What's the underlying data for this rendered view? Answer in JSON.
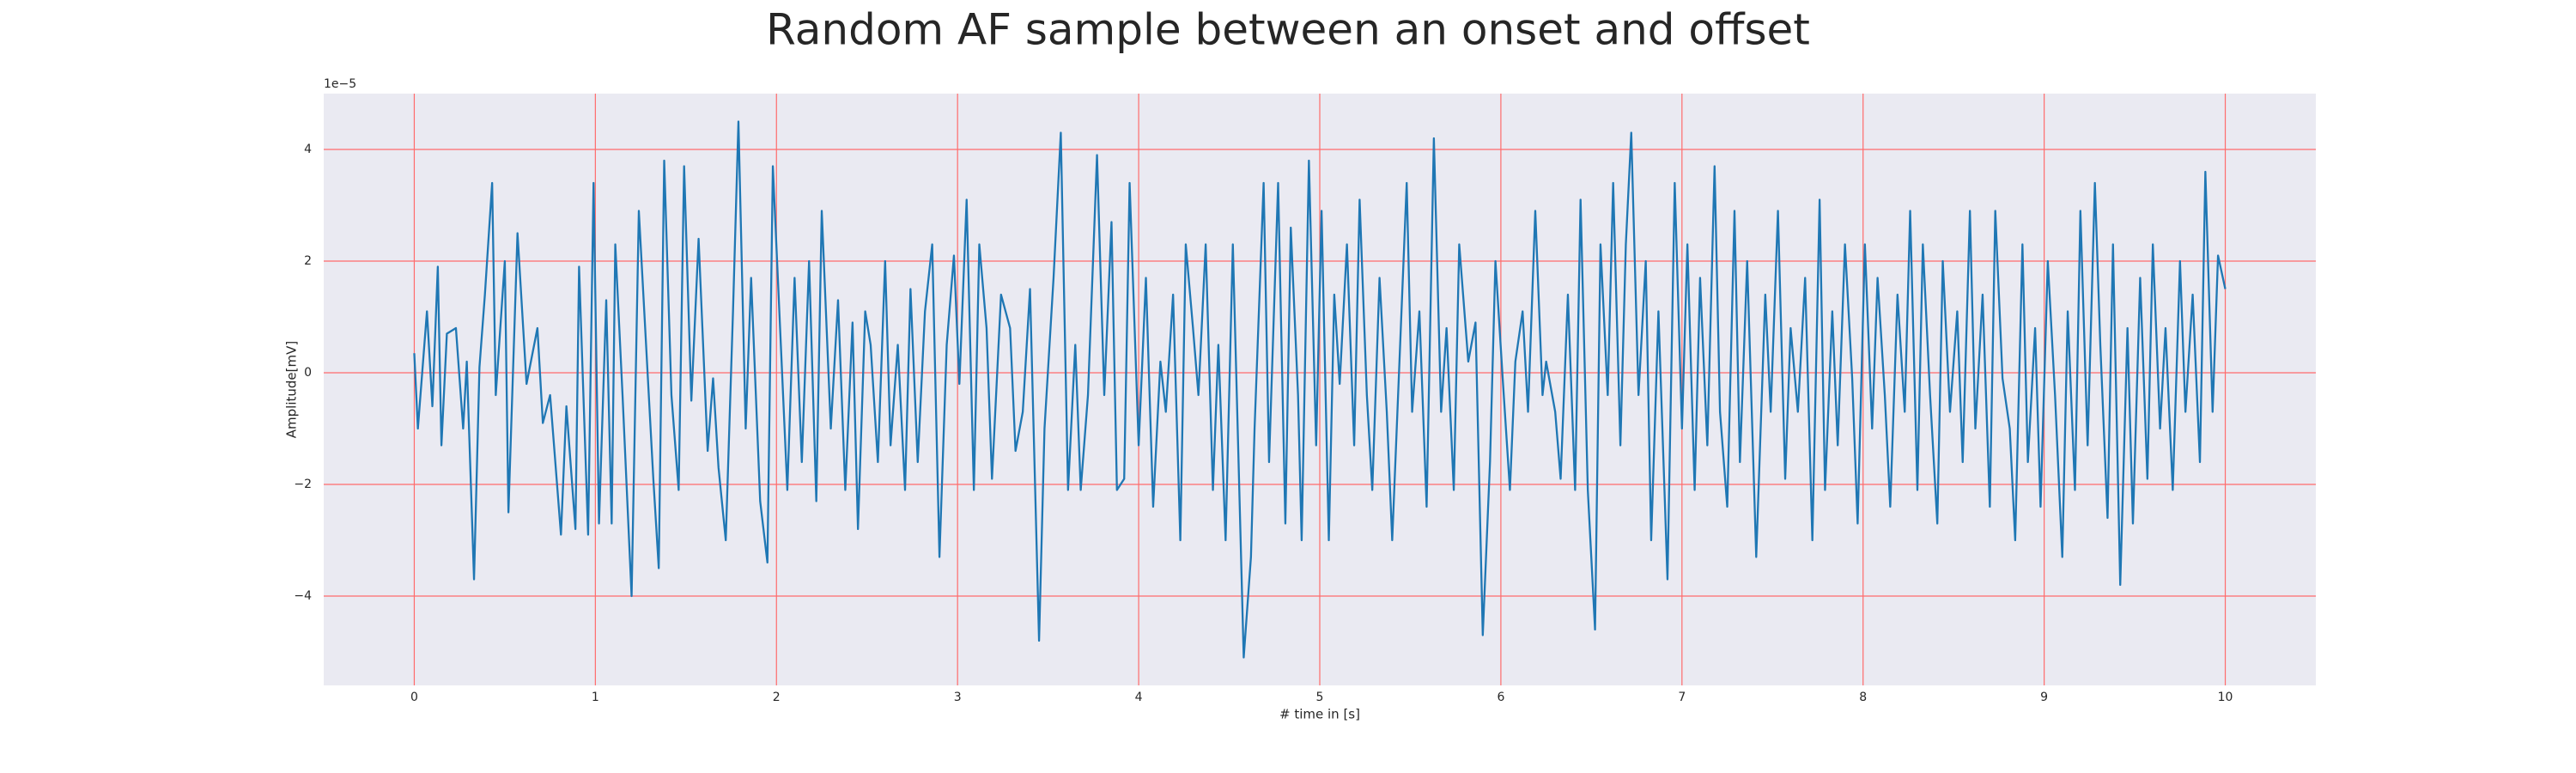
{
  "chart_data": {
    "type": "line",
    "title": "Random AF sample between an onset and offset",
    "xlabel": "# time in [s]",
    "ylabel": "Amplitude[mV]",
    "y_offset_label": "1e−5",
    "background": "#eaeaf2",
    "grid": true,
    "grid_color": "#ff6b6b",
    "xlim": [
      -0.5,
      10.5
    ],
    "ylim": [
      -5.6,
      5.0
    ],
    "xticks": [
      0,
      1,
      2,
      3,
      4,
      5,
      6,
      7,
      8,
      9,
      10
    ],
    "yticks": [
      {
        "value": -4,
        "label": "−4"
      },
      {
        "value": -2,
        "label": "−2"
      },
      0,
      2,
      4
    ],
    "x": [
      0,
      0.02,
      0.07,
      0.1,
      0.13,
      0.15,
      0.18,
      0.23,
      0.27,
      0.29,
      0.33,
      0.36,
      0.39,
      0.43,
      0.45,
      0.5,
      0.52,
      0.57,
      0.62,
      0.68,
      0.71,
      0.75,
      0.81,
      0.84,
      0.89,
      0.91,
      0.96,
      0.99,
      1.02,
      1.06,
      1.09,
      1.11,
      1.15,
      1.2,
      1.24,
      1.28,
      1.32,
      1.35,
      1.38,
      1.42,
      1.46,
      1.49,
      1.53,
      1.57,
      1.62,
      1.65,
      1.68,
      1.72,
      1.76,
      1.79,
      1.83,
      1.86,
      1.91,
      1.95,
      1.98,
      2.02,
      2.06,
      2.1,
      2.14,
      2.18,
      2.22,
      2.25,
      2.3,
      2.34,
      2.38,
      2.42,
      2.45,
      2.49,
      2.52,
      2.56,
      2.6,
      2.63,
      2.67,
      2.71,
      2.74,
      2.78,
      2.82,
      2.86,
      2.9,
      2.94,
      2.98,
      3.01,
      3.05,
      3.09,
      3.12,
      3.16,
      3.19,
      3.24,
      3.29,
      3.32,
      3.36,
      3.4,
      3.45,
      3.48,
      3.53,
      3.57,
      3.61,
      3.65,
      3.68,
      3.72,
      3.77,
      3.81,
      3.85,
      3.88,
      3.92,
      3.95,
      4.0,
      4.04,
      4.08,
      4.12,
      4.15,
      4.19,
      4.23,
      4.26,
      4.3,
      4.33,
      4.37,
      4.41,
      4.44,
      4.48,
      4.52,
      4.58,
      4.62,
      4.64,
      4.69,
      4.72,
      4.77,
      4.81,
      4.84,
      4.88,
      4.9,
      4.94,
      4.98,
      5.01,
      5.05,
      5.08,
      5.11,
      5.15,
      5.19,
      5.22,
      5.26,
      5.29,
      5.33,
      5.37,
      5.4,
      5.44,
      5.48,
      5.51,
      5.55,
      5.59,
      5.63,
      5.67,
      5.7,
      5.74,
      5.77,
      5.82,
      5.86,
      5.9,
      5.94,
      5.97,
      6.01,
      6.05,
      6.08,
      6.12,
      6.15,
      6.19,
      6.23,
      6.25,
      6.3,
      6.33,
      6.37,
      6.41,
      6.44,
      6.48,
      6.52,
      6.55,
      6.59,
      6.62,
      6.66,
      6.69,
      6.72,
      6.76,
      6.8,
      6.83,
      6.87,
      6.92,
      6.96,
      7.0,
      7.03,
      7.07,
      7.1,
      7.14,
      7.18,
      7.21,
      7.25,
      7.29,
      7.32,
      7.36,
      7.41,
      7.46,
      7.49,
      7.53,
      7.57,
      7.6,
      7.64,
      7.68,
      7.72,
      7.76,
      7.79,
      7.83,
      7.86,
      7.9,
      7.94,
      7.97,
      8.01,
      8.05,
      8.08,
      8.12,
      8.15,
      8.19,
      8.23,
      8.26,
      8.3,
      8.33,
      8.37,
      8.41,
      8.44,
      8.48,
      8.52,
      8.55,
      8.59,
      8.62,
      8.66,
      8.7,
      8.73,
      8.77,
      8.81,
      8.84,
      8.88,
      8.91,
      8.95,
      8.98,
      9.02,
      9.06,
      9.1,
      9.13,
      9.17,
      9.2,
      9.24,
      9.28,
      9.31,
      9.35,
      9.38,
      9.42,
      9.46,
      9.49,
      9.53,
      9.57,
      9.6,
      9.64,
      9.67,
      9.71,
      9.75,
      9.78,
      9.82,
      9.86,
      9.89,
      9.93,
      9.96,
      10.0
    ],
    "series": [
      {
        "color": "#1f77b4",
        "values": [
          0.35,
          -1.0,
          1.1,
          -0.6,
          1.9,
          -1.3,
          0.7,
          0.8,
          -1.0,
          0.2,
          -3.7,
          0.1,
          1.4,
          3.4,
          -0.4,
          2.0,
          -2.5,
          2.5,
          -0.2,
          0.8,
          -0.9,
          -0.4,
          -2.9,
          -0.6,
          -2.8,
          1.9,
          -2.9,
          3.4,
          -2.7,
          1.3,
          -2.7,
          2.3,
          -0.4,
          -4.0,
          2.9,
          0.5,
          -1.9,
          -3.5,
          3.8,
          -0.4,
          -2.1,
          3.7,
          -0.5,
          2.4,
          -1.4,
          -0.1,
          -1.7,
          -3.0,
          1.1,
          4.5,
          -1.0,
          1.7,
          -2.3,
          -3.4,
          3.7,
          0.8,
          -2.1,
          1.7,
          -1.6,
          2.0,
          -2.3,
          2.9,
          -1.0,
          1.3,
          -2.1,
          0.9,
          -2.8,
          1.1,
          0.5,
          -1.6,
          2.0,
          -1.3,
          0.5,
          -2.1,
          1.5,
          -1.6,
          1.1,
          2.3,
          -3.3,
          0.5,
          2.1,
          -0.2,
          3.1,
          -2.1,
          2.3,
          0.8,
          -1.9,
          1.4,
          0.8,
          -1.4,
          -0.7,
          1.5,
          -4.8,
          -1.0,
          1.7,
          4.3,
          -2.1,
          0.5,
          -2.1,
          -0.4,
          3.9,
          -0.4,
          2.7,
          -2.1,
          -1.9,
          3.4,
          -1.3,
          1.7,
          -2.4,
          0.2,
          -0.7,
          1.4,
          -3.0,
          2.3,
          0.8,
          -0.4,
          2.3,
          -2.1,
          0.5,
          -3.0,
          2.3,
          -5.1,
          -3.3,
          -1.0,
          3.4,
          -1.6,
          3.4,
          -2.7,
          2.6,
          -0.4,
          -3.0,
          3.8,
          -1.3,
          2.9,
          -3.0,
          1.4,
          -0.2,
          2.3,
          -1.3,
          3.1,
          -0.4,
          -2.1,
          1.7,
          -0.7,
          -3.0,
          0.2,
          3.4,
          -0.7,
          1.1,
          -2.4,
          4.2,
          -0.7,
          0.8,
          -2.1,
          2.3,
          0.2,
          0.9,
          -4.7,
          -1.6,
          2.0,
          -0.1,
          -2.1,
          0.2,
          1.1,
          -0.7,
          2.9,
          -0.4,
          0.2,
          -0.7,
          -1.9,
          1.4,
          -2.1,
          3.1,
          -2.1,
          -4.6,
          2.3,
          -0.4,
          3.4,
          -1.3,
          2.3,
          4.3,
          -0.4,
          2.0,
          -3.0,
          1.1,
          -3.7,
          3.4,
          -1.0,
          2.3,
          -2.1,
          1.7,
          -1.3,
          3.7,
          -0.7,
          -2.4,
          2.9,
          -1.6,
          2.0,
          -3.3,
          1.4,
          -0.7,
          2.9,
          -1.9,
          0.8,
          -0.7,
          1.7,
          -3.0,
          3.1,
          -2.1,
          1.1,
          -1.3,
          2.3,
          -0.1,
          -2.7,
          2.3,
          -1.0,
          1.7,
          -0.4,
          -2.4,
          1.4,
          -0.7,
          2.9,
          -2.1,
          2.3,
          -0.4,
          -2.7,
          2.0,
          -0.7,
          1.1,
          -1.6,
          2.9,
          -1.0,
          1.4,
          -2.4,
          2.9,
          -0.1,
          -1.0,
          -3.0,
          2.3,
          -1.6,
          0.8,
          -2.4,
          2.0,
          -0.4,
          -3.3,
          1.1,
          -2.1,
          2.9,
          -1.3,
          3.4,
          0.5,
          -2.6,
          2.3,
          -3.8,
          0.8,
          -2.7,
          1.7,
          -1.9,
          2.3,
          -1.0,
          0.8,
          -2.1,
          2.0,
          -0.7,
          1.4,
          -1.6,
          3.6,
          -0.7,
          2.1,
          1.5
        ]
      }
    ]
  }
}
